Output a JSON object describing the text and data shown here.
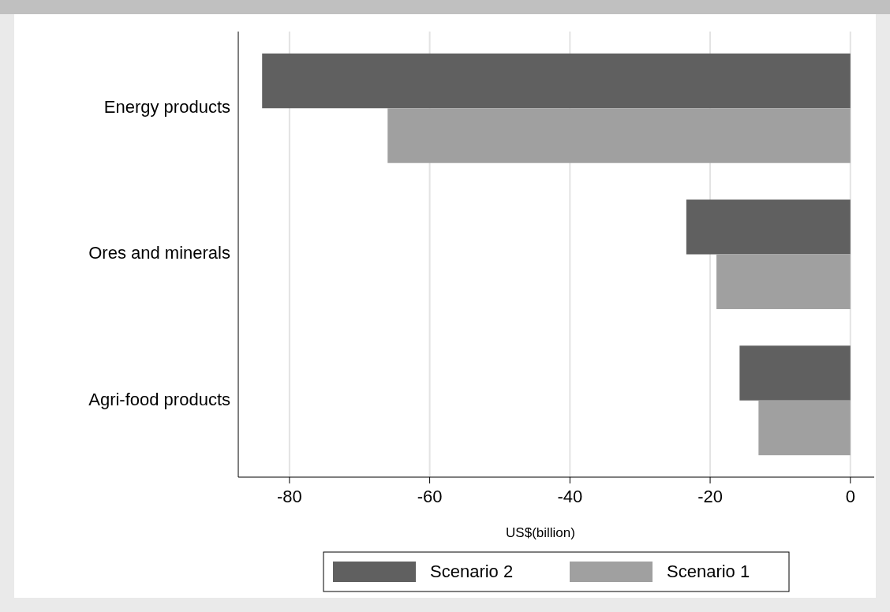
{
  "chart_data": {
    "type": "bar",
    "orientation": "horizontal",
    "categories": [
      "Energy products",
      "Ores and minerals",
      "Agri-food products"
    ],
    "series": [
      {
        "name": "Scenario 2",
        "color": "#606060",
        "values": [
          -83.9,
          -23.4,
          -15.8
        ]
      },
      {
        "name": "Scenario 1",
        "color": "#a0a0a0",
        "values": [
          -66.0,
          -19.1,
          -13.1
        ]
      }
    ],
    "xlabel": "US$(billion)",
    "xlim": [
      -87.3,
      3.4
    ],
    "xticks": [
      -80,
      -60,
      -40,
      -20,
      0
    ],
    "grid": "x",
    "legend": "bottom"
  }
}
